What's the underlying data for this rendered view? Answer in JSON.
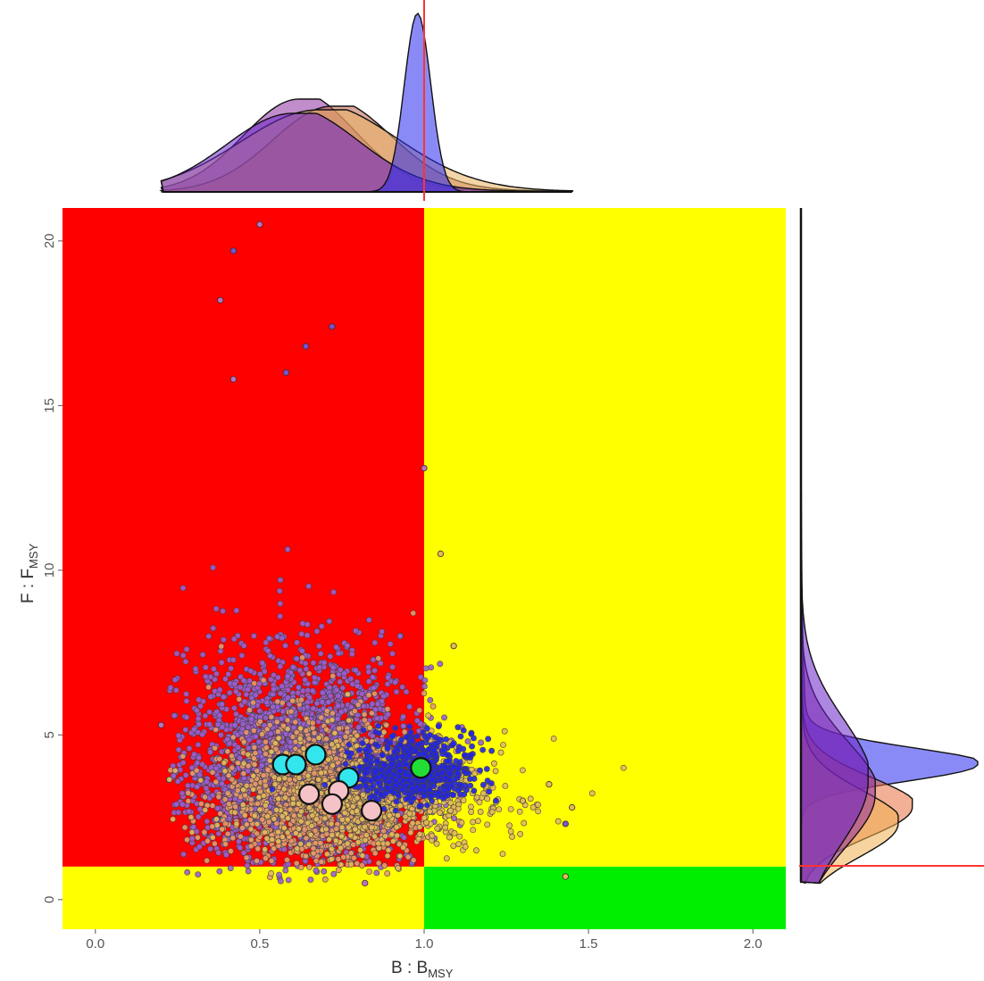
{
  "chart_data": {
    "type": "scatter",
    "title": "",
    "xlabel": {
      "main": "B : B",
      "sub": "MSY"
    },
    "ylabel": {
      "main": "F : F",
      "sub": "MSY"
    },
    "xlim": [
      -0.1,
      2.1
    ],
    "ylim": [
      -0.9,
      21.0
    ],
    "x_ticks": [
      0.0,
      0.5,
      1.0,
      1.5,
      2.0
    ],
    "x_tick_labels": [
      "0.0",
      "0.5",
      "1.0",
      "1.5",
      "2.0"
    ],
    "y_ticks": [
      0,
      5,
      10,
      15,
      20
    ],
    "y_tick_labels": [
      "0",
      "5",
      "10",
      "15",
      "20"
    ],
    "grid": false,
    "legend": "none",
    "reference_lines": {
      "b_bmsy": 1.0,
      "f_fmsy": 1.0
    },
    "zones": [
      {
        "x": [
          -0.1,
          1.0
        ],
        "y": [
          1.0,
          21.0
        ],
        "color": "#ff0000"
      },
      {
        "x": [
          1.0,
          2.1
        ],
        "y": [
          1.0,
          21.0
        ],
        "color": "#ffff00"
      },
      {
        "x": [
          -0.1,
          1.0
        ],
        "y": [
          -0.9,
          1.0
        ],
        "color": "#ffff00"
      },
      {
        "x": [
          1.0,
          2.1
        ],
        "y": [
          -0.9,
          1.0
        ],
        "color": "#00ee00"
      }
    ],
    "scatter_clouds": [
      {
        "color": "#9a5fd4",
        "n": 2600,
        "center": [
          0.62,
          3.4
        ],
        "spread": [
          0.17,
          1.9
        ]
      },
      {
        "color": "#e89a6a",
        "n": 1300,
        "center": [
          0.68,
          2.7
        ],
        "spread": [
          0.15,
          1.4
        ]
      },
      {
        "color": "#e6b85c",
        "n": 700,
        "center": [
          0.85,
          2.6
        ],
        "spread": [
          0.2,
          1.1
        ]
      },
      {
        "color": "#2222ee",
        "n": 700,
        "center": [
          0.97,
          3.6
        ],
        "spread": [
          0.09,
          0.6
        ]
      }
    ],
    "outlier_points": [
      {
        "x": 0.5,
        "y": 20.5,
        "color": "#c070c0"
      },
      {
        "x": 0.42,
        "y": 19.7,
        "color": "#7a52d0"
      },
      {
        "x": 0.38,
        "y": 18.2,
        "color": "#c070c0"
      },
      {
        "x": 0.72,
        "y": 17.4,
        "color": "#7a52d0"
      },
      {
        "x": 0.64,
        "y": 16.8,
        "color": "#7a52d0"
      },
      {
        "x": 0.58,
        "y": 16.0,
        "color": "#7a52d0"
      },
      {
        "x": 0.42,
        "y": 15.8,
        "color": "#c070c0"
      },
      {
        "x": 1.0,
        "y": 13.1,
        "color": "#c070c0"
      },
      {
        "x": 1.05,
        "y": 10.5,
        "color": "#e6b85c"
      },
      {
        "x": 1.09,
        "y": 7.7,
        "color": "#e6b85c"
      },
      {
        "x": 1.45,
        "y": 2.8,
        "color": "#e6b85c"
      },
      {
        "x": 1.43,
        "y": 2.3,
        "color": "#7a52d0"
      },
      {
        "x": 1.38,
        "y": 3.5,
        "color": "#e6b85c"
      },
      {
        "x": 1.3,
        "y": 3.0,
        "color": "#e6b85c"
      },
      {
        "x": 0.2,
        "y": 5.3,
        "color": "#c070c0"
      },
      {
        "x": 0.82,
        "y": 0.5,
        "color": "#c070c0"
      },
      {
        "x": 1.43,
        "y": 0.7,
        "color": "#e6b85c"
      }
    ],
    "highlight_points": [
      {
        "group": "cyan",
        "color": "#33e6ee",
        "x": 0.57,
        "y": 4.1
      },
      {
        "group": "cyan",
        "color": "#33e6ee",
        "x": 0.61,
        "y": 4.1
      },
      {
        "group": "cyan",
        "color": "#33e6ee",
        "x": 0.67,
        "y": 4.4
      },
      {
        "group": "cyan",
        "color": "#33e6ee",
        "x": 0.77,
        "y": 3.7
      },
      {
        "group": "pink",
        "color": "#f5c2c8",
        "x": 0.65,
        "y": 3.2
      },
      {
        "group": "pink",
        "color": "#f5c2c8",
        "x": 0.74,
        "y": 3.3
      },
      {
        "group": "pink",
        "color": "#f5c2c8",
        "x": 0.72,
        "y": 2.9
      },
      {
        "group": "pink",
        "color": "#f5c2c8",
        "x": 0.84,
        "y": 2.7
      },
      {
        "group": "green",
        "color": "#22dd33",
        "x": 0.99,
        "y": 4.0
      }
    ],
    "marginal_densities": {
      "top_bbmsy": [
        {
          "color": "#9030a0",
          "peak_x": 0.62,
          "sd": 0.17,
          "rel_height": 0.52
        },
        {
          "color": "#c0604a",
          "peak_x": 0.72,
          "sd": 0.18,
          "rel_height": 0.48
        },
        {
          "color": "#e9b262",
          "peak_x": 0.68,
          "sd": 0.24,
          "rel_height": 0.46
        },
        {
          "color": "#6a22c8",
          "peak_x": 0.6,
          "sd": 0.2,
          "rel_height": 0.44
        },
        {
          "color": "#2a2af0",
          "peak_x": 0.98,
          "sd": 0.04,
          "rel_height": 1.0
        }
      ],
      "right_ffmsy": [
        {
          "color": "#2a2af0",
          "peak_y": 4.1,
          "sd": 0.5,
          "rel_height": 1.0
        },
        {
          "color": "#e87040",
          "peak_y": 2.8,
          "sd": 0.9,
          "rel_height": 0.63
        },
        {
          "color": "#f0b050",
          "peak_y": 2.3,
          "sd": 1.0,
          "rel_height": 0.55
        },
        {
          "color": "#9030a0",
          "peak_y": 3.2,
          "sd": 1.6,
          "rel_height": 0.42
        },
        {
          "color": "#6a22c8",
          "peak_y": 3.6,
          "sd": 1.9,
          "rel_height": 0.38
        }
      ]
    }
  }
}
